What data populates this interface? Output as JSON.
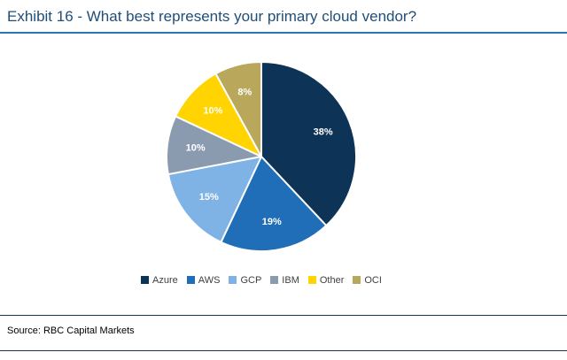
{
  "header": {
    "title": "Exhibit 16 - What best represents your primary cloud vendor?"
  },
  "footer": {
    "source": "Source: RBC Capital Markets"
  },
  "colors": {
    "title_text": "#1F4E79",
    "title_rule": "#2E74B5",
    "footer_rule": "#17365D",
    "background": "#FFFFFF"
  },
  "chart_data": {
    "type": "pie",
    "title": "What best represents your primary cloud vendor?",
    "slices": [
      {
        "label": "Azure",
        "value": 38,
        "data_label": "38%",
        "color": "#0D3356"
      },
      {
        "label": "AWS",
        "value": 19,
        "data_label": "19%",
        "color": "#1F6EB7"
      },
      {
        "label": "GCP",
        "value": 15,
        "data_label": "15%",
        "color": "#7FB2E5"
      },
      {
        "label": "IBM",
        "value": 10,
        "data_label": "10%",
        "color": "#8A9BB0"
      },
      {
        "label": "Other",
        "value": 10,
        "data_label": "10%",
        "color": "#FFD400"
      },
      {
        "label": "OCI",
        "value": 8,
        "data_label": "8%",
        "color": "#B9A85C"
      }
    ],
    "start_angle_deg": -90,
    "direction": "clockwise",
    "data_label_color": "#FFFFFF",
    "label_radius_ratio": 0.7,
    "legend_position": "bottom",
    "legend_order": [
      "Azure",
      "AWS",
      "GCP",
      "IBM",
      "Other",
      "OCI"
    ]
  }
}
